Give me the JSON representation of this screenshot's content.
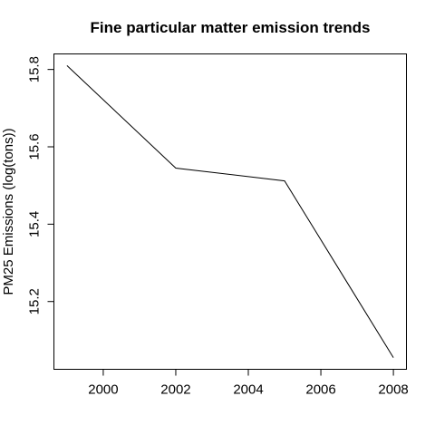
{
  "chart_data": {
    "type": "line",
    "title": "Fine particular matter emission trends",
    "xlabel": "",
    "ylabel": "PM25 Emissions (log(tons))",
    "x": [
      1999,
      2002,
      2005,
      2008
    ],
    "series": [
      {
        "values": [
          15.81,
          15.545,
          15.512,
          15.055
        ]
      }
    ],
    "xlim": [
      1998.64,
      2008.36
    ],
    "ylim": [
      15.0248,
      15.8402
    ],
    "xticks": [
      2000,
      2002,
      2004,
      2006,
      2008
    ],
    "yticks": [
      15.2,
      15.4,
      15.6,
      15.8
    ],
    "xtick_labels": [
      "2000",
      "2002",
      "2004",
      "2006",
      "2008"
    ],
    "ytick_labels": [
      "15.2",
      "15.4",
      "15.6",
      "15.8"
    ],
    "grid": false,
    "line_color": "#000000"
  }
}
